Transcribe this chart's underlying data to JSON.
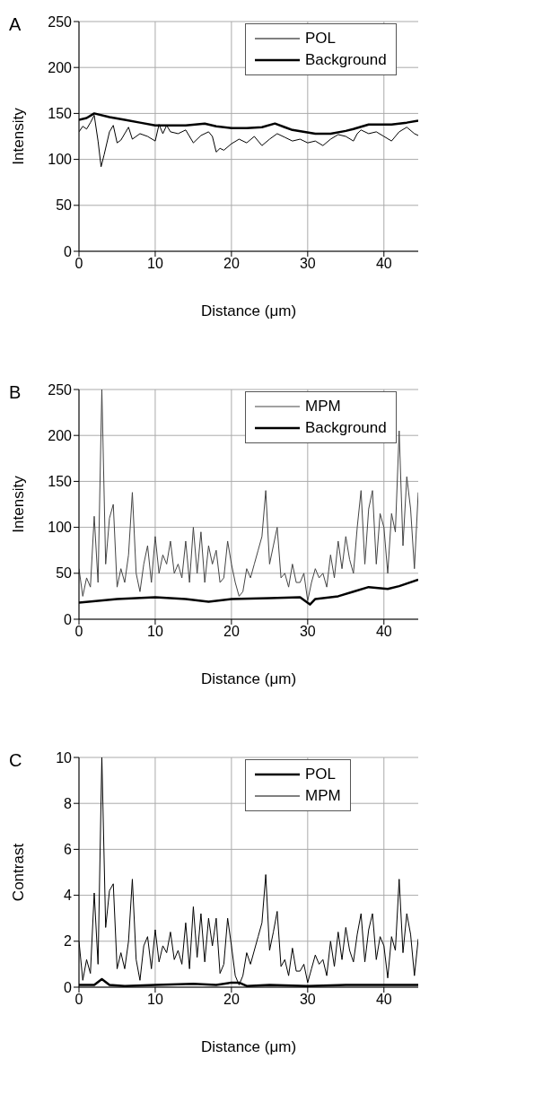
{
  "chart_data": [
    {
      "type": "line",
      "title": "A",
      "xlabel": "Distance (μm)",
      "ylabel": "Intensity",
      "xlim": [
        0,
        44.5
      ],
      "xticks": [
        0,
        10,
        20,
        30,
        40
      ],
      "ylim": [
        0,
        250
      ],
      "yticks": [
        0,
        50,
        100,
        150,
        200,
        250
      ],
      "grid": true,
      "legend": "top right",
      "marker": "none",
      "line_style": "solid",
      "series": [
        {
          "name": "POL",
          "color": "#000000",
          "x": [
            0,
            0.5,
            1,
            1.5,
            2,
            2.5,
            2.9,
            3.3,
            4,
            4.5,
            5,
            5.5,
            6,
            6.5,
            7,
            8,
            9,
            10,
            10.5,
            11,
            11.5,
            12,
            13,
            14,
            15,
            16,
            17,
            17.5,
            18,
            18.5,
            19,
            20,
            21,
            22,
            23,
            24,
            25,
            26,
            27,
            28,
            29,
            30,
            31,
            32,
            33,
            34,
            35,
            36,
            36.5,
            37,
            38,
            39,
            40,
            41,
            42,
            43,
            44,
            44.5
          ],
          "values": [
            130,
            136,
            133,
            140,
            148,
            120,
            92,
            105,
            130,
            137,
            118,
            121,
            128,
            135,
            122,
            128,
            125,
            120,
            138,
            128,
            137,
            130,
            128,
            132,
            118,
            126,
            130,
            125,
            108,
            112,
            110,
            117,
            122,
            118,
            125,
            115,
            122,
            128,
            124,
            120,
            122,
            118,
            120,
            115,
            122,
            127,
            125,
            120,
            128,
            132,
            128,
            130,
            125,
            120,
            130,
            135,
            128,
            126
          ]
        },
        {
          "name": "Background",
          "color": "#000000",
          "x": [
            0,
            1,
            2,
            4,
            6,
            8,
            10,
            12,
            14,
            16.5,
            18,
            20,
            22,
            24,
            25.7,
            27,
            28,
            31,
            33,
            35,
            36,
            38,
            40,
            41,
            43,
            44.5
          ],
          "values": [
            143,
            145,
            150,
            146,
            143,
            140,
            137,
            137,
            137,
            139,
            136,
            134,
            134,
            135,
            139,
            135,
            132,
            128,
            128,
            131,
            133,
            138,
            138,
            138,
            140,
            142
          ]
        }
      ]
    },
    {
      "type": "line",
      "title": "B",
      "xlabel": "Distance (μm)",
      "ylabel": "Intensity",
      "xlim": [
        0,
        44.5
      ],
      "xticks": [
        0,
        10,
        20,
        30,
        40
      ],
      "ylim": [
        0,
        250
      ],
      "yticks": [
        0,
        50,
        100,
        150,
        200,
        250
      ],
      "grid": true,
      "legend": "top right",
      "marker": "none",
      "line_style": "solid",
      "series": [
        {
          "name": "MPM",
          "color": "#444444",
          "x": [
            0,
            0.5,
            1,
            1.5,
            2,
            2.5,
            3,
            3.5,
            4,
            4.5,
            5,
            5.5,
            6,
            6.5,
            7,
            7.5,
            8,
            8.5,
            9,
            9.5,
            10,
            10.5,
            11,
            11.5,
            12,
            12.5,
            13,
            13.5,
            14,
            14.5,
            15,
            15.5,
            16,
            16.5,
            17,
            17.5,
            18,
            18.5,
            19,
            19.5,
            20,
            20.5,
            21,
            21.5,
            22,
            22.5,
            23,
            23.5,
            24,
            24.5,
            25,
            25.5,
            26,
            26.5,
            27,
            27.5,
            28,
            28.5,
            29,
            29.5,
            30,
            30.5,
            31,
            31.5,
            32,
            32.5,
            33,
            33.5,
            34,
            34.5,
            35,
            35.5,
            36,
            36.5,
            37,
            37.5,
            38,
            38.5,
            39,
            39.5,
            40,
            40.5,
            41,
            41.5,
            42,
            42.5,
            43,
            43.5,
            44,
            44.5
          ],
          "values": [
            55,
            25,
            45,
            35,
            112,
            40,
            250,
            60,
            110,
            125,
            35,
            55,
            40,
            70,
            138,
            50,
            30,
            60,
            80,
            40,
            90,
            50,
            70,
            60,
            85,
            50,
            60,
            45,
            85,
            40,
            100,
            50,
            95,
            40,
            80,
            60,
            75,
            40,
            45,
            85,
            60,
            40,
            25,
            30,
            55,
            45,
            60,
            75,
            90,
            140,
            60,
            80,
            100,
            45,
            50,
            35,
            60,
            40,
            40,
            50,
            20,
            40,
            55,
            45,
            50,
            35,
            70,
            45,
            85,
            55,
            90,
            65,
            50,
            100,
            140,
            60,
            120,
            140,
            60,
            115,
            100,
            50,
            115,
            95,
            205,
            80,
            155,
            120,
            55,
            138
          ]
        },
        {
          "name": "Background",
          "color": "#000000",
          "x": [
            0,
            5,
            10,
            14,
            17,
            20,
            25,
            29,
            30.3,
            31,
            34,
            36,
            38,
            40.5,
            42,
            44.5
          ],
          "values": [
            18,
            22,
            24,
            22,
            19,
            22,
            23,
            24,
            16,
            22,
            25,
            30,
            35,
            33,
            36,
            43
          ]
        }
      ]
    },
    {
      "type": "line",
      "title": "C",
      "xlabel": "Distance (μm)",
      "ylabel": "Contrast",
      "xlim": [
        0,
        44.5
      ],
      "xticks": [
        0,
        10,
        20,
        30,
        40
      ],
      "ylim": [
        0,
        10
      ],
      "yticks": [
        0,
        2,
        4,
        6,
        8,
        10
      ],
      "grid": true,
      "legend": "top right",
      "marker": "none",
      "line_style": "solid",
      "series": [
        {
          "name": "POL",
          "color": "#000000",
          "x": [
            0,
            2,
            3,
            4,
            6,
            10,
            15,
            18,
            20,
            21,
            22,
            25,
            30,
            35,
            40,
            44.5
          ],
          "values": [
            0.1,
            0.1,
            0.35,
            0.1,
            0.05,
            0.1,
            0.15,
            0.1,
            0.2,
            0.2,
            0.05,
            0.1,
            0.05,
            0.1,
            0.1,
            0.1
          ]
        },
        {
          "name": "MPM",
          "color": "#000000",
          "x": [
            0,
            0.5,
            1,
            1.5,
            2,
            2.5,
            3,
            3.5,
            4,
            4.5,
            5,
            5.5,
            6,
            6.5,
            7,
            7.5,
            8,
            8.5,
            9,
            9.5,
            10,
            10.5,
            11,
            11.5,
            12,
            12.5,
            13,
            13.5,
            14,
            14.5,
            15,
            15.5,
            16,
            16.5,
            17,
            17.5,
            18,
            18.5,
            19,
            19.5,
            20,
            20.5,
            21,
            21.5,
            22,
            22.5,
            23,
            23.5,
            24,
            24.5,
            25,
            25.5,
            26,
            26.5,
            27,
            27.5,
            28,
            28.5,
            29,
            29.5,
            30,
            30.5,
            31,
            31.5,
            32,
            32.5,
            33,
            33.5,
            34,
            34.5,
            35,
            35.5,
            36,
            36.5,
            37,
            37.5,
            38,
            38.5,
            39,
            39.5,
            40,
            40.5,
            41,
            41.5,
            42,
            42.5,
            43,
            43.5,
            44,
            44.5
          ],
          "values": [
            2.0,
            0.3,
            1.2,
            0.6,
            4.1,
            1,
            10,
            2.6,
            4.2,
            4.5,
            0.8,
            1.5,
            0.8,
            2,
            4.7,
            1.2,
            0.3,
            1.8,
            2.2,
            0.8,
            2.5,
            1.1,
            1.8,
            1.5,
            2.4,
            1.2,
            1.6,
            1,
            2.8,
            0.8,
            3.5,
            1.3,
            3.2,
            1.1,
            3,
            1.8,
            3,
            0.6,
            1,
            3,
            1.8,
            0.5,
            0.1,
            0.5,
            1.5,
            1,
            1.6,
            2.2,
            2.8,
            4.9,
            1.6,
            2.4,
            3.3,
            0.9,
            1.2,
            0.5,
            1.7,
            0.7,
            0.7,
            1,
            0.2,
            0.8,
            1.4,
            1,
            1.2,
            0.5,
            2,
            0.9,
            2.4,
            1.2,
            2.6,
            1.6,
            1.1,
            2.3,
            3.2,
            1.1,
            2.5,
            3.2,
            1.2,
            2.2,
            1.8,
            0.4,
            2.2,
            1.6,
            4.7,
            1.5,
            3.2,
            2.3,
            0.5,
            2.1
          ]
        }
      ]
    }
  ]
}
